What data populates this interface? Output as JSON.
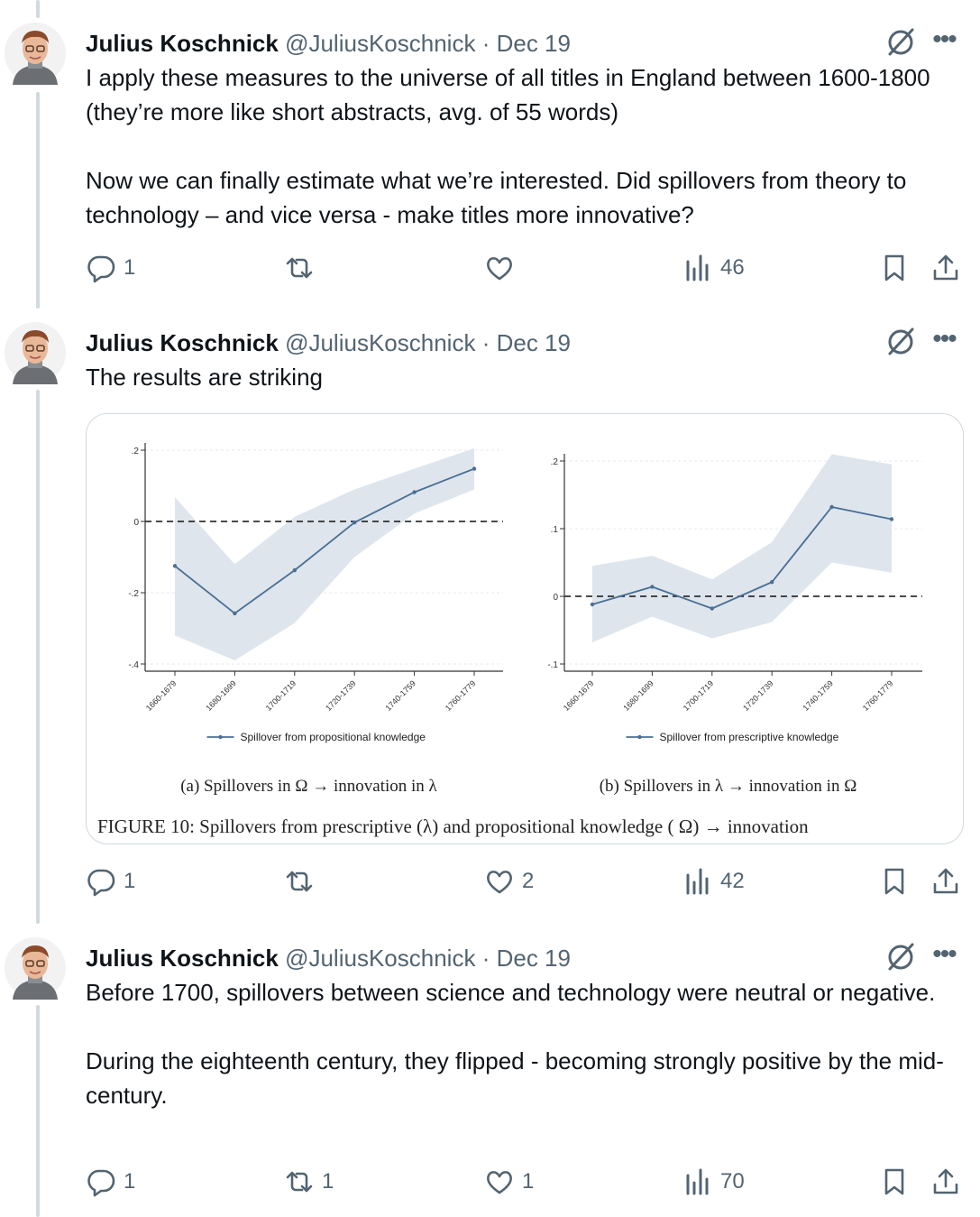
{
  "author": {
    "name": "Julius Koschnick",
    "handle": "@JuliusKoschnick",
    "separator": "·"
  },
  "tweets": [
    {
      "date": "Dec 19",
      "text": "I apply these measures to the universe of all titles in England between 1600-1800 (they’re more like short abstracts, avg. of 55 words)\n\nNow we can finally estimate what we’re interested. Did spillovers from theory to technology – and vice versa - make titles more innovative?",
      "replies": "1",
      "reposts": "",
      "likes": "",
      "views": "46"
    },
    {
      "date": "Dec 19",
      "text": "The results are striking",
      "replies": "1",
      "reposts": "",
      "likes": "2",
      "views": "42"
    },
    {
      "date": "Dec 19",
      "text": "Before 1700, spillovers between science and technology were neutral or negative.\n\nDuring the eighteenth century, they flipped - becoming strongly positive by the mid-century.",
      "replies": "1",
      "reposts": "1",
      "likes": "1",
      "views": "70"
    }
  ],
  "icons": {
    "reply": "reply-icon",
    "repost": "repost-icon",
    "like": "heart-icon",
    "views": "views-icon",
    "bookmark": "bookmark-icon",
    "share": "share-icon",
    "grok": "grok-icon",
    "more": "more-icon"
  },
  "colors": {
    "line": "#4a6f94",
    "band": "#d8e1ea",
    "muted": "#536471",
    "border": "#cfd9de"
  },
  "figure": {
    "caption": "FIGURE 10: Spillovers from prescriptive (λ) and propositional knowledge ( Ω) → innovation",
    "panels": [
      {
        "caption": "(a) Spillovers in Ω → innovation in λ",
        "legend": "Spillover from propositional knowledge"
      },
      {
        "caption": "(b) Spillovers in λ → innovation in Ω",
        "legend": "Spillover from prescriptive knowledge"
      }
    ]
  },
  "chart_data": [
    {
      "type": "line",
      "categories": [
        "1660-1679",
        "1680-1699",
        "1700-1719",
        "1720-1739",
        "1740-1759",
        "1760-1779"
      ],
      "series": [
        {
          "name": "Spillover from propositional knowledge",
          "values": [
            -0.125,
            -0.258,
            -0.137,
            -0.003,
            0.082,
            0.148
          ]
        }
      ],
      "ci_lower": [
        -0.32,
        -0.39,
        -0.285,
        -0.1,
        0.022,
        0.09
      ],
      "ci_upper": [
        0.068,
        -0.12,
        0.013,
        0.09,
        0.148,
        0.205
      ],
      "yticks": [
        "2",
        "0",
        "-2",
        "-4"
      ],
      "ytick_values": [
        0.2,
        0,
        -0.2,
        -0.4
      ],
      "ylim": [
        -0.4,
        0.2
      ],
      "reference_line": 0,
      "legend_position": "bottom",
      "title": "(a) Spillovers in Ω → innovation in λ"
    },
    {
      "type": "line",
      "categories": [
        "1660-1679",
        "1680-1699",
        "1700-1719",
        "1720-1739",
        "1740-1759",
        "1760-1779"
      ],
      "series": [
        {
          "name": "Spillover from prescriptive knowledge",
          "values": [
            -0.012,
            0.014,
            -0.018,
            0.021,
            0.132,
            0.114
          ]
        }
      ],
      "ci_lower": [
        -0.068,
        -0.03,
        -0.062,
        -0.038,
        0.05,
        0.035
      ],
      "ci_upper": [
        0.045,
        0.06,
        0.025,
        0.08,
        0.21,
        0.195
      ],
      "yticks": [
        "2",
        "1",
        "0",
        "-1"
      ],
      "ytick_values": [
        0.2,
        0.1,
        0,
        -0.1
      ],
      "ylim": [
        -0.1,
        0.2
      ],
      "reference_line": 0,
      "legend_position": "bottom",
      "title": "(b) Spillovers in λ → innovation in Ω"
    }
  ]
}
